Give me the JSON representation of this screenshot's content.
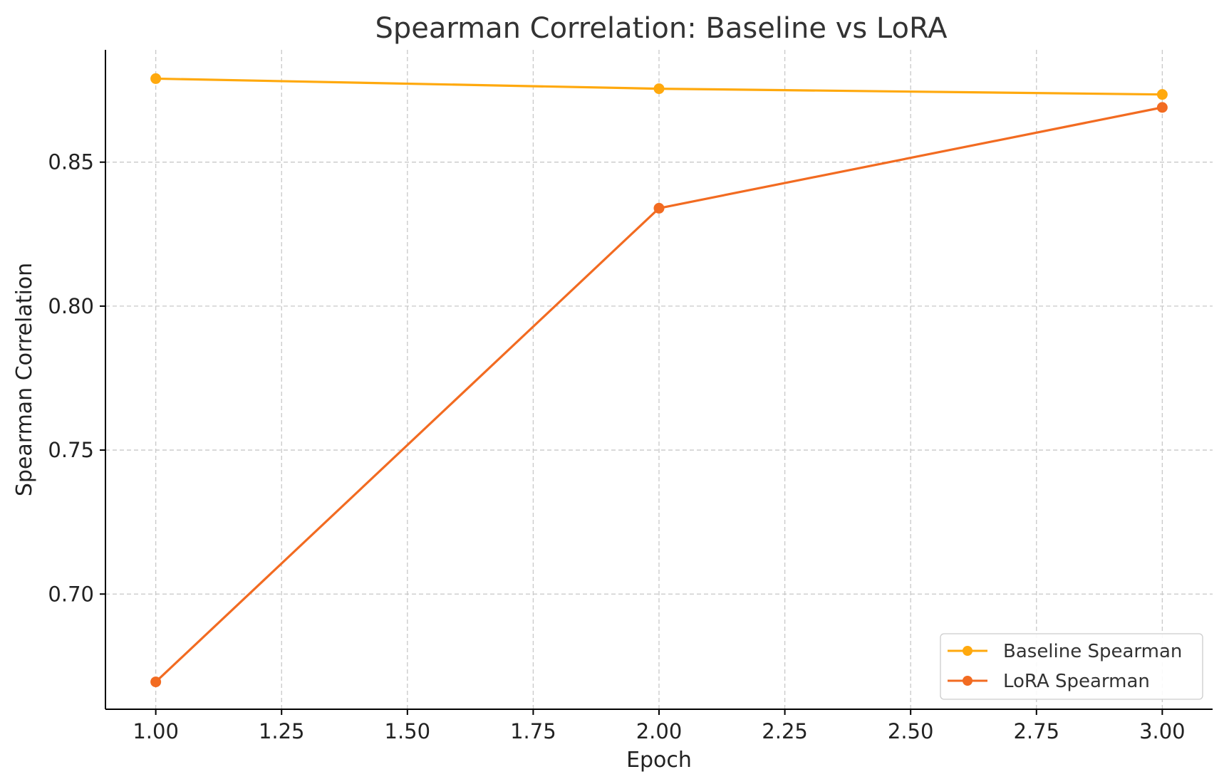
{
  "chart_data": {
    "type": "line",
    "title": "Spearman Correlation: Baseline vs LoRA",
    "xlabel": "Epoch",
    "ylabel": "Spearman Correlation",
    "x": [
      1.0,
      2.0,
      3.0
    ],
    "xlim": [
      0.9,
      3.1
    ],
    "ylim": [
      0.66,
      0.889
    ],
    "xticks": [
      1.0,
      1.25,
      1.5,
      1.75,
      2.0,
      2.25,
      2.5,
      2.75,
      3.0
    ],
    "xtick_labels": [
      "1.00",
      "1.25",
      "1.50",
      "1.75",
      "2.00",
      "2.25",
      "2.50",
      "2.75",
      "3.00"
    ],
    "yticks": [
      0.7,
      0.75,
      0.8,
      0.85
    ],
    "ytick_labels": [
      "0.70",
      "0.75",
      "0.80",
      "0.85"
    ],
    "grid": true,
    "legend_position": "bottom-right",
    "series": [
      {
        "name": "Baseline Spearman",
        "color": "#FFA90E",
        "values": [
          0.879,
          0.8755,
          0.8735
        ]
      },
      {
        "name": "LoRA Spearman",
        "color": "#F26B21",
        "values": [
          0.6695,
          0.834,
          0.869
        ]
      }
    ]
  }
}
